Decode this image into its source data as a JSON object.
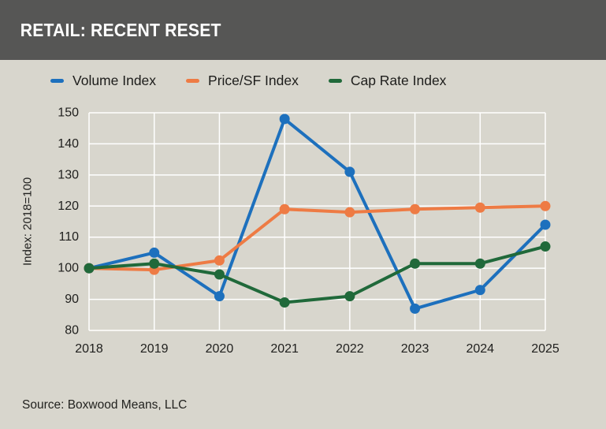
{
  "header": {
    "title": "RETAIL: RECENT RESET"
  },
  "source": {
    "text": "Source: Boxwood Means, LLC"
  },
  "colors": {
    "background": "#d8d6cd",
    "header_bg": "#565655",
    "grid": "#ffffff",
    "tick_text": "#1f1f1d"
  },
  "chart_data": {
    "type": "line",
    "title": "RETAIL: RECENT RESET",
    "categories": [
      "2018",
      "2019",
      "2020",
      "2021",
      "2022",
      "2023",
      "2024",
      "2025"
    ],
    "series": [
      {
        "name": "Volume Index",
        "color": "#1d70bd",
        "values": [
          100,
          105,
          91,
          148,
          131,
          87,
          93,
          114
        ]
      },
      {
        "name": "Price/SF Index",
        "color": "#ee7b44",
        "values": [
          100,
          99.5,
          102.5,
          119,
          118,
          119,
          119.5,
          120
        ]
      },
      {
        "name": "Cap Rate Index",
        "color": "#20693a",
        "values": [
          100,
          101.5,
          98,
          89,
          91,
          101.5,
          101.5,
          107
        ]
      }
    ],
    "xlabel": "",
    "ylabel": "Index: 2018=100",
    "ylim": [
      80,
      150
    ],
    "ytick_step": 10,
    "grid": true,
    "legend_position": "top",
    "marker": "circle"
  }
}
